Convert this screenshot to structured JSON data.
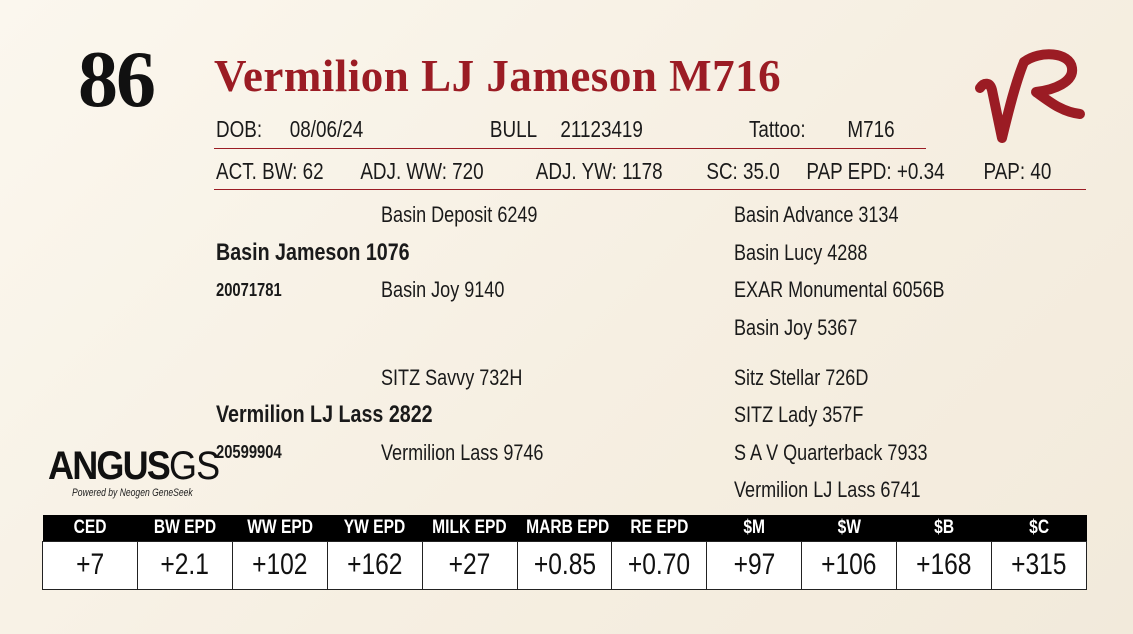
{
  "lot_number": "86",
  "animal_name": "Vermilion LJ Jameson M716",
  "id_row": {
    "dob_label": "DOB:",
    "dob_value": "08/06/24",
    "sex_label": "BULL",
    "registration": "21123419",
    "tattoo_label": "Tattoo:",
    "tattoo_value": "M716"
  },
  "stats_row": {
    "act_bw": "ACT. BW: 62",
    "adj_ww": "ADJ. WW: 720",
    "adj_yw": "ADJ. YW: 1178",
    "sc": "SC: 35.0",
    "pap_epd": "PAP EPD: +0.34",
    "pap": "PAP: 40"
  },
  "pedigree": {
    "sire": {
      "name": "Basin Jameson 1076",
      "registration": "20071781",
      "sire": "Basin Deposit 6249",
      "dam": "Basin Joy 9140",
      "sire_sire": "Basin Advance 3134",
      "sire_dam": "Basin Lucy 4288",
      "dam_sire": "EXAR Monumental 6056B",
      "dam_dam": "Basin Joy 5367"
    },
    "dam": {
      "name": "Vermilion LJ Lass 2822",
      "registration": "20599904",
      "sire": "SITZ Savvy 732H",
      "dam": "Vermilion Lass 9746",
      "sire_sire": "Sitz Stellar 726D",
      "sire_dam": "SITZ Lady 357F",
      "dam_sire": "S A V Quarterback 7933",
      "dam_dam": "Vermilion LJ Lass 6741"
    }
  },
  "logo": {
    "brand": "VR",
    "angus_word": "ANGUS",
    "angus_gs": "GS",
    "powered_by": "Powered by Neogen GeneSeek"
  },
  "epd_table": {
    "headers": [
      "CED",
      "BW EPD",
      "WW EPD",
      "YW EPD",
      "MILK EPD",
      "MARB EPD",
      "RE EPD",
      "$M",
      "$W",
      "$B",
      "$C"
    ],
    "values": [
      "+7",
      "+2.1",
      "+102",
      "+162",
      "+27",
      "+0.85",
      "+0.70",
      "+97",
      "+106",
      "+168",
      "+315"
    ]
  },
  "colors": {
    "accent": "#9b1c24",
    "background": "#f8f2e6",
    "table_header": "#000000"
  }
}
